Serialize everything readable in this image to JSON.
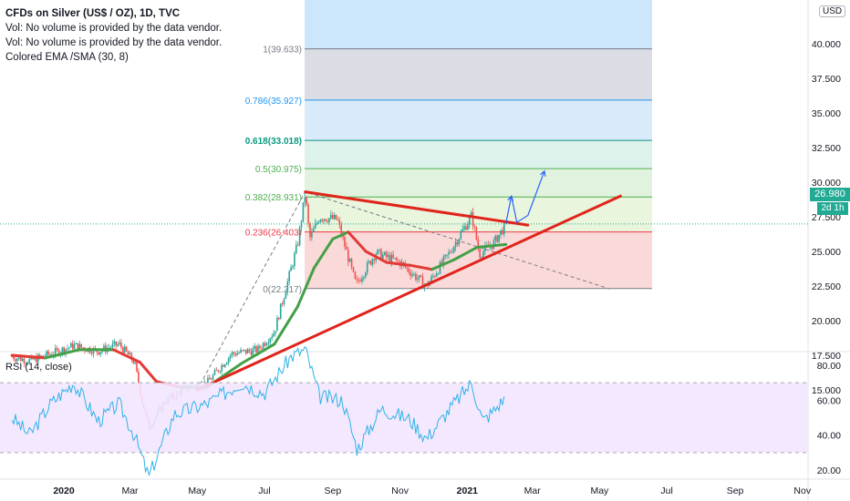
{
  "header": {
    "symbol_line": "CFDs on Silver (US$ / OZ), 1D, TVC",
    "volume_line_1": "Vol: No volume is provided by the data vendor.",
    "volume_line_2": "Vol: No volume is provided by the data vendor.",
    "ma_line": "Colored EMA /SMA (30, 8)"
  },
  "price_axis": {
    "currency": "USD",
    "ticks": [
      "40.000",
      "37.500",
      "35.000",
      "32.500",
      "30.000",
      "27.500",
      "25.000",
      "22.500",
      "20.000",
      "17.500",
      "15.000"
    ],
    "last_price": "26.980",
    "countdown": "2d 1h"
  },
  "rsi": {
    "label": "RSI (14, close)",
    "ticks": [
      "80.00",
      "60.00",
      "40.00",
      "20.00"
    ],
    "band_upper": 70,
    "band_lower": 30
  },
  "time_axis": {
    "labels": [
      "2020",
      "Mar",
      "May",
      "Jul",
      "Sep",
      "Nov",
      "2021",
      "Mar",
      "May",
      "Jul",
      "Sep",
      "Nov"
    ]
  },
  "fibonacci": {
    "levels": [
      {
        "ratio": "1",
        "price": 39.633,
        "text": "1(39.633)",
        "color": "#787b86"
      },
      {
        "ratio": "0.786",
        "price": 35.927,
        "text": "0.786(35.927)",
        "color": "#2196f3"
      },
      {
        "ratio": "0.618",
        "price": 33.018,
        "text": "0.618(33.018)",
        "color": "#089981"
      },
      {
        "ratio": "0.5",
        "price": 30.975,
        "text": "0.5(30.975)",
        "color": "#4caf50"
      },
      {
        "ratio": "0.382",
        "price": 28.931,
        "text": "0.382(28.931)",
        "color": "#4caf50"
      },
      {
        "ratio": "0.236",
        "price": 26.403,
        "text": "0.236(26.403)",
        "color": "#f23645"
      },
      {
        "ratio": "0",
        "price": 22.317,
        "text": "0(22.317)",
        "color": "#787b86"
      }
    ]
  },
  "colors": {
    "up": "#26a69a",
    "down": "#ef5350",
    "trendline": "#e0241b",
    "ma_up": "#43a047",
    "ma_down": "#e53935",
    "rsi_line": "#2eb3e6",
    "projection": "#2962ff",
    "last_price": "#22ab94"
  },
  "chart_data": {
    "type": "candlestick",
    "title": "CFDs on Silver (US$ / OZ), 1D, TVC",
    "ylim": [
      13.0,
      43.0
    ],
    "rsi_ylim": [
      15,
      91
    ],
    "x_labels": [
      "2020",
      "Mar",
      "May",
      "Jul",
      "Sep",
      "Nov",
      "2021",
      "Mar",
      "May",
      "Jul",
      "Sep",
      "Nov"
    ],
    "price_path": [
      [
        "2019-11-15",
        17.4
      ],
      [
        "2019-12-01",
        17.1
      ],
      [
        "2019-12-20",
        17.6
      ],
      [
        "2020-01-10",
        18.2
      ],
      [
        "2020-02-01",
        17.8
      ],
      [
        "2020-02-20",
        18.3
      ],
      [
        "2020-03-05",
        17.0
      ],
      [
        "2020-03-12",
        14.2
      ],
      [
        "2020-03-18",
        12.3
      ],
      [
        "2020-04-01",
        14.1
      ],
      [
        "2020-04-20",
        15.1
      ],
      [
        "2020-05-10",
        15.5
      ],
      [
        "2020-06-01",
        17.6
      ],
      [
        "2020-06-25",
        17.9
      ],
      [
        "2020-07-10",
        19.2
      ],
      [
        "2020-07-22",
        22.8
      ],
      [
        "2020-07-31",
        25.5
      ],
      [
        "2020-08-07",
        29.2
      ],
      [
        "2020-08-11",
        25.9
      ],
      [
        "2020-08-20",
        27.5
      ],
      [
        "2020-09-05",
        27.3
      ],
      [
        "2020-09-22",
        22.6
      ],
      [
        "2020-10-10",
        24.9
      ],
      [
        "2020-11-01",
        24.2
      ],
      [
        "2020-11-25",
        22.5
      ],
      [
        "2020-12-15",
        24.8
      ],
      [
        "2021-01-05",
        27.6
      ],
      [
        "2021-01-12",
        24.8
      ],
      [
        "2021-01-25",
        25.6
      ],
      [
        "2021-02-05",
        26.98
      ]
    ],
    "moving_average": [
      [
        "2019-11-15",
        17.5
      ],
      [
        "2019-12-15",
        17.3
      ],
      [
        "2020-01-15",
        17.9
      ],
      [
        "2020-02-15",
        17.9
      ],
      [
        "2020-03-10",
        17.0
      ],
      [
        "2020-03-25",
        15.6
      ],
      [
        "2020-04-15",
        15.2
      ],
      [
        "2020-05-10",
        15.2
      ],
      [
        "2020-06-10",
        16.9
      ],
      [
        "2020-07-10",
        18.3
      ],
      [
        "2020-07-31",
        21.0
      ],
      [
        "2020-08-15",
        23.8
      ],
      [
        "2020-09-01",
        25.9
      ],
      [
        "2020-09-15",
        26.4
      ],
      [
        "2020-10-01",
        25.0
      ],
      [
        "2020-10-20",
        24.2
      ],
      [
        "2020-11-10",
        24.0
      ],
      [
        "2020-11-30",
        23.7
      ],
      [
        "2020-12-20",
        24.4
      ],
      [
        "2021-01-10",
        25.3
      ],
      [
        "2021-02-05",
        25.5
      ]
    ],
    "rsi_path": [
      [
        "2019-11-15",
        50
      ],
      [
        "2019-12-01",
        40
      ],
      [
        "2019-12-20",
        58
      ],
      [
        "2020-01-10",
        70
      ],
      [
        "2020-02-01",
        48
      ],
      [
        "2020-02-20",
        58
      ],
      [
        "2020-03-05",
        40
      ],
      [
        "2020-03-18",
        16
      ],
      [
        "2020-04-10",
        52
      ],
      [
        "2020-05-10",
        58
      ],
      [
        "2020-06-10",
        70
      ],
      [
        "2020-07-01",
        64
      ],
      [
        "2020-07-25",
        85
      ],
      [
        "2020-08-07",
        89
      ],
      [
        "2020-08-20",
        62
      ],
      [
        "2020-09-10",
        60
      ],
      [
        "2020-09-23",
        32
      ],
      [
        "2020-10-15",
        55
      ],
      [
        "2020-11-10",
        49
      ],
      [
        "2020-11-25",
        38
      ],
      [
        "2020-12-20",
        58
      ],
      [
        "2021-01-05",
        70
      ],
      [
        "2021-01-15",
        48
      ],
      [
        "2021-01-25",
        54
      ],
      [
        "2021-02-05",
        62
      ]
    ],
    "trendlines": [
      {
        "name": "support",
        "from": [
          "2020-05-01",
          15.0
        ],
        "to": [
          "2021-05-20",
          29.0
        ]
      },
      {
        "name": "resistance",
        "from": [
          "2020-08-07",
          29.3
        ],
        "to": [
          "2021-02-25",
          26.9
        ]
      }
    ],
    "dashed_line": {
      "from": [
        "2020-05-01",
        15.0
      ],
      "via": [
        "2020-08-07",
        29.3
      ],
      "to": [
        "2021-05-10",
        22.3
      ]
    },
    "projection_path": [
      [
        "2021-02-05",
        27.0
      ],
      [
        "2021-02-10",
        29.0
      ],
      [
        "2021-02-15",
        27.1
      ],
      [
        "2021-02-25",
        27.6
      ],
      [
        "2021-03-12",
        30.8
      ]
    ]
  }
}
